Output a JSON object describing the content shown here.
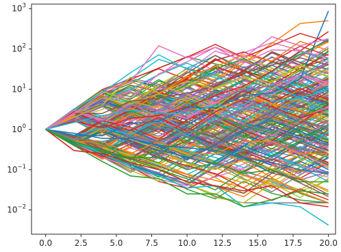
{
  "chart_data": {
    "type": "line",
    "title": "",
    "xlabel": "",
    "ylabel": "",
    "xlim": [
      -1,
      20.5
    ],
    "ylim": [
      0.0025,
      1300
    ],
    "yscale": "log",
    "grid": false,
    "legend": "none",
    "x": [
      0,
      2,
      4,
      6,
      8,
      10,
      12,
      14,
      16,
      18,
      20
    ],
    "x_ticks": [
      0,
      2.5,
      5,
      7.5,
      10,
      12.5,
      15,
      17.5,
      20
    ],
    "x_tick_labels": [
      "0.0",
      "2.5",
      "5.0",
      "7.5",
      "10.0",
      "12.5",
      "15.0",
      "17.5",
      "20.0"
    ],
    "y_ticks": [
      0.01,
      0.1,
      1,
      10,
      100,
      1000
    ],
    "y_tick_labels": [
      {
        "base": "10",
        "exp": "−2"
      },
      {
        "base": "10",
        "exp": "−1"
      },
      {
        "base": "10",
        "exp": "0"
      },
      {
        "base": "10",
        "exp": "1"
      },
      {
        "base": "10",
        "exp": "2"
      },
      {
        "base": "10",
        "exp": "3"
      }
    ],
    "series_colors": [
      "#1f77b4",
      "#ff7f0e",
      "#2ca02c",
      "#d62728",
      "#9467bd",
      "#8c564b",
      "#e377c2",
      "#7f7f7f",
      "#bcbd22",
      "#17becf"
    ],
    "series": [
      {
        "values": [
          1,
          0.7,
          0.7,
          1.4,
          1.6,
          3.5,
          3.4,
          7,
          8,
          18,
          880
        ]
      },
      {
        "values": [
          1,
          1.6,
          1.1,
          1.9,
          2.2,
          3.6,
          7,
          12,
          28,
          90,
          270
        ]
      },
      {
        "values": [
          1,
          2.4,
          6,
          6,
          24,
          48,
          110,
          45,
          95,
          90,
          60
        ]
      },
      {
        "values": [
          1,
          0.5,
          0.25,
          0.12,
          0.07,
          0.035,
          0.04,
          0.012,
          0.015,
          0.012,
          0.0042
        ]
      },
      {
        "values": [
          1,
          0.4,
          0.16,
          0.07,
          0.06,
          0.025,
          0.025,
          0.012,
          0.018,
          0.03,
          0.025
        ]
      },
      {
        "values": [
          1,
          2.5,
          2.5,
          5,
          6,
          8,
          12,
          25,
          40,
          60,
          40
        ]
      },
      {
        "values": [
          1,
          2,
          4,
          20,
          8,
          16,
          10,
          20,
          15,
          40,
          20
        ]
      },
      {
        "values": [
          1,
          0.5,
          0.5,
          0.25,
          0.5,
          0.25,
          0.25,
          0.5,
          0.5,
          0.25,
          0.25
        ]
      },
      {
        "values": [
          1,
          1.8,
          1.6,
          4,
          3,
          8,
          5,
          10,
          12,
          25,
          40
        ]
      },
      {
        "values": [
          1,
          0.6,
          0.5,
          0.7,
          0.5,
          0.9,
          0.8,
          1.3,
          0.9,
          1.4,
          1.2
        ]
      },
      {
        "values": [
          1,
          0.8,
          0.6,
          0.6,
          0.4,
          0.35,
          0.3,
          0.2,
          0.15,
          0.1,
          0.08
        ]
      },
      {
        "values": [
          1,
          0.3,
          0.25,
          0.15,
          0.1,
          0.05,
          0.04,
          0.03,
          0.04,
          0.015,
          0.012
        ]
      },
      {
        "values": [
          1,
          2.5,
          8,
          15,
          120,
          60,
          110,
          60,
          200,
          120,
          180
        ]
      },
      {
        "values": [
          1,
          1.5,
          2.2,
          3,
          2.5,
          2.5,
          4,
          3,
          5,
          6,
          10
        ]
      },
      {
        "values": [
          1,
          0.5,
          0.3,
          0.2,
          0.2,
          0.1,
          0.15,
          0.08,
          0.1,
          0.05,
          0.05
        ]
      }
    ],
    "band": {
      "count": 240,
      "steps": 10,
      "p_up": 0.45,
      "up_range": [
        1.6,
        3.2
      ],
      "down_range": [
        0.4,
        0.72
      ],
      "lower_bound": 0.015,
      "upper_bound": 500
    }
  }
}
